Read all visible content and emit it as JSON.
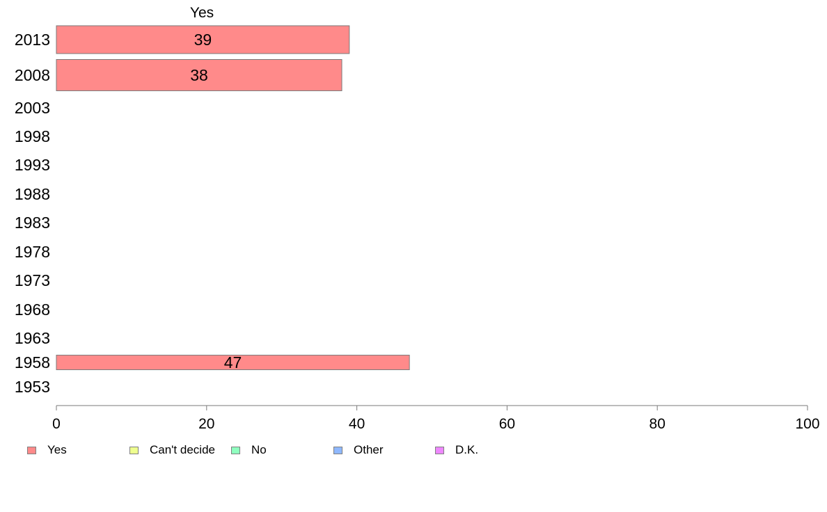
{
  "chart_data": {
    "type": "bar",
    "orientation": "horizontal",
    "stacked": true,
    "categories": [
      "2013",
      "2008",
      "2003",
      "1998",
      "1993",
      "1988",
      "1983",
      "1978",
      "1973",
      "1968",
      "1963",
      "1958",
      "1953"
    ],
    "series": [
      {
        "name": "Yes",
        "color": "#ff8a8a",
        "values": [
          39,
          38,
          null,
          null,
          null,
          null,
          null,
          null,
          null,
          null,
          null,
          47,
          null
        ]
      },
      {
        "name": "Can't decide",
        "color": "#eeff8f",
        "values": [
          null,
          null,
          null,
          null,
          null,
          null,
          null,
          null,
          null,
          null,
          null,
          null,
          null
        ]
      },
      {
        "name": "No",
        "color": "#8fffbf",
        "values": [
          null,
          null,
          null,
          null,
          null,
          null,
          null,
          null,
          null,
          null,
          null,
          null,
          null
        ]
      },
      {
        "name": "Other",
        "color": "#8fb8ff",
        "values": [
          null,
          null,
          null,
          null,
          null,
          null,
          null,
          null,
          null,
          null,
          null,
          null,
          null
        ]
      },
      {
        "name": "D.K.",
        "color": "#ee88ff",
        "values": [
          null,
          null,
          null,
          null,
          null,
          null,
          null,
          null,
          null,
          null,
          null,
          null,
          null
        ]
      }
    ],
    "data_labels": [
      39,
      38,
      null,
      null,
      null,
      null,
      null,
      null,
      null,
      null,
      null,
      47,
      null
    ],
    "column_header": "Yes",
    "xlim": [
      0,
      100
    ],
    "xticks": [
      "0",
      "20",
      "40",
      "60",
      "80",
      "100"
    ],
    "grid": false,
    "legend_position": "bottom"
  }
}
